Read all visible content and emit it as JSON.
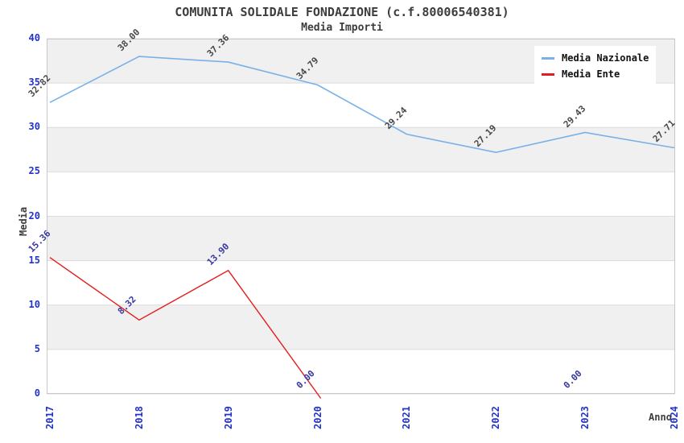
{
  "chart_data": {
    "type": "line",
    "title": "COMUNITA SOLIDALE FONDAZIONE (c.f.80006540381)",
    "subtitle": "Media Importi",
    "x": {
      "label": "Anno",
      "categories": [
        "2017",
        "2018",
        "2019",
        "2020",
        "2021",
        "2022",
        "2023",
        "2024"
      ]
    },
    "y": {
      "label": "Media",
      "min": 0,
      "max": 40,
      "tick_step": 5,
      "ticks": [
        0,
        5,
        10,
        15,
        20,
        25,
        30,
        35,
        40
      ]
    },
    "series": [
      {
        "name": "Media Nazionale",
        "color": "#79b1e6",
        "label_color": "#474747",
        "line_width": 1.6,
        "values": [
          32.82,
          38.0,
          37.36,
          34.79,
          29.24,
          27.19,
          29.43,
          27.71
        ],
        "labels": [
          "32.82",
          "38.00",
          "37.36",
          "34.79",
          "29.24",
          "27.19",
          "29.43",
          "27.71"
        ],
        "extend_below_axis": false
      },
      {
        "name": "Media Ente",
        "color": "#e51c1c",
        "label_color": "#37379f",
        "line_width": 1.4,
        "values": [
          15.36,
          8.32,
          13.9,
          0.0,
          null,
          null,
          0.0,
          null
        ],
        "labels": [
          "15.36",
          "8.32",
          "13.90",
          "0.00",
          null,
          null,
          "0.00",
          null
        ],
        "extend_below_axis": true
      }
    ],
    "legend": {
      "position": "top-right"
    },
    "style": {
      "band_color": "#f0f0f0",
      "grid_color": "#dcdcdc",
      "border_color": "#c8c8c8",
      "tick_label_color": "#2233cc",
      "axis_title_color": "#3d3d3d",
      "title_color": "#3d3d3d"
    }
  }
}
